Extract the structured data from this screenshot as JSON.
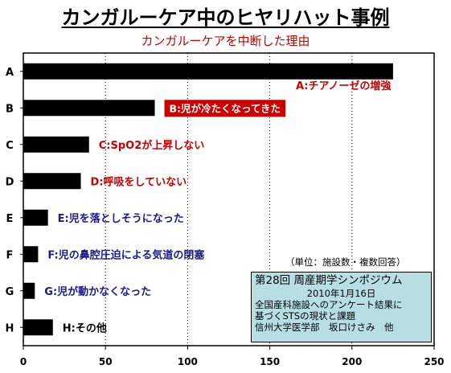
{
  "title": "カンガルーケア中のヒヤリハット事例",
  "chart_data": {
    "type": "bar",
    "orientation": "horizontal",
    "title": "カンガルーケアを中断した理由",
    "categories": [
      "A",
      "B",
      "C",
      "D",
      "E",
      "F",
      "G",
      "H"
    ],
    "values": [
      225,
      80,
      40,
      35,
      15,
      9,
      7,
      18
    ],
    "xlim": [
      0,
      250
    ],
    "xticks": [
      "0",
      "50",
      "100",
      "150",
      "200",
      "250"
    ],
    "grid": true,
    "bar_color": "#000000",
    "annotations": [
      {
        "text": "A:チアノーゼの増強",
        "color": "#cc0000",
        "style": "plain"
      },
      {
        "text": "B:児が冷たくなってきた",
        "color": "#ffffff",
        "bg": "#cc0000",
        "style": "boxed"
      },
      {
        "text": "C:SpO2が上昇しない",
        "color": "#cc0000",
        "style": "plain"
      },
      {
        "text": "D:呼吸をしていない",
        "color": "#cc0000",
        "style": "plain"
      },
      {
        "text": "E:児を落としそうになった",
        "color": "#1a1a8c",
        "style": "plain"
      },
      {
        "text": "F:児の鼻腔圧迫による気道の閉塞",
        "color": "#1a1a8c",
        "style": "plain"
      },
      {
        "text": "G:児が動かなくなった",
        "color": "#1a1a8c",
        "style": "plain"
      },
      {
        "text": "H:その他",
        "color": "#000000",
        "style": "plain"
      }
    ],
    "unit_note": "（単位：施設数・複数回答）"
  },
  "source_box": {
    "line1": "第28回 周産期学シンポジウム",
    "line2": "2010年1月16日",
    "line3": "全国産科施設へのアンケート結果に",
    "line4": "基づくSTSの現状と課題",
    "line5": "信州大学医学部　坂口けさみ　他"
  }
}
